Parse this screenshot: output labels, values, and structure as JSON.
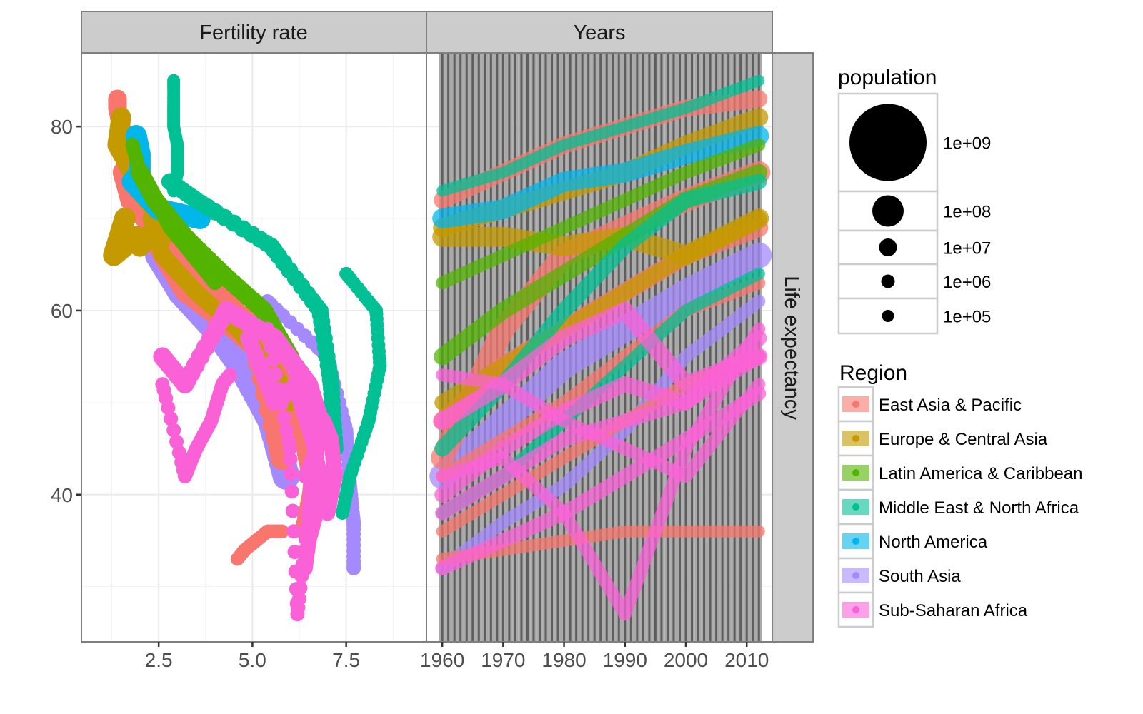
{
  "chart_data": {
    "type": "scatter",
    "title": "",
    "facets": {
      "columns": [
        "Fertility rate",
        "Years"
      ],
      "rows": [
        "Life expectancy"
      ]
    },
    "y_axis": {
      "label": "Life expectancy",
      "ticks": [
        40,
        60,
        80
      ],
      "tick_labels": [
        "40",
        "60",
        "80"
      ],
      "range": [
        24,
        88
      ]
    },
    "panels": [
      {
        "name": "Fertility rate",
        "x_ticks": [
          2.5,
          5.0,
          7.5
        ],
        "x_tick_labels": [
          "2.5",
          "5.0",
          "7.5"
        ],
        "x_range": [
          0.44,
          9.64
        ],
        "grid": true
      },
      {
        "name": "Years",
        "x_ticks": [
          1960,
          1970,
          1980,
          1990,
          2000,
          2010
        ],
        "x_tick_labels": [
          "1960",
          "1970",
          "1980",
          "1990",
          "2000",
          "2010"
        ],
        "x_range": [
          1957.4,
          2014.2
        ],
        "grid": true,
        "year_bars": {
          "from": 1960,
          "to": 2012
        }
      }
    ],
    "legend": {
      "size": {
        "title": "population",
        "breaks": [
          "1e+09",
          "1e+08",
          "1e+07",
          "1e+06",
          "1e+05"
        ]
      },
      "color": {
        "title": "Region",
        "entries": [
          {
            "label": "East Asia & Pacific",
            "color": "#F8766D"
          },
          {
            "label": "Europe & Central Asia",
            "color": "#C49A00"
          },
          {
            "label": "Latin America & Caribbean",
            "color": "#53B400"
          },
          {
            "label": "Middle East & North Africa",
            "color": "#00C094"
          },
          {
            "label": "North America",
            "color": "#00B6EB"
          },
          {
            "label": "South Asia",
            "color": "#A58AFF"
          },
          {
            "label": "Sub-Saharan Africa",
            "color": "#FB61D7"
          }
        ]
      }
    },
    "series": [
      {
        "name": "East Asia & Pacific",
        "trajectories": [
          {
            "fertility": [
              2.0,
              1.8,
              1.6,
              1.5,
              1.4,
              1.4
            ],
            "life": [
              72,
              75,
              78,
              80,
              82,
              83
            ],
            "years": [
              1960,
              1970,
              1980,
              1990,
              2000,
              2012
            ],
            "size": 18
          },
          {
            "fertility": [
              5.8,
              5.0,
              3.0,
              2.4,
              1.8,
              1.6
            ],
            "life": [
              44,
              58,
              66,
              69,
              72,
              75
            ],
            "years": [
              1960,
              1970,
              1980,
              1990,
              2000,
              2012
            ],
            "size": 26
          },
          {
            "fertility": [
              6.2,
              5.6,
              4.5,
              3.2,
              2.6,
              2.3
            ],
            "life": [
              48,
              54,
              58,
              62,
              66,
              69
            ],
            "years": [
              1960,
              1970,
              1980,
              1990,
              2000,
              2012
            ],
            "size": 20
          },
          {
            "fertility": [
              6.5,
              6.3,
              6.0,
              5.2,
              4.5,
              3.8
            ],
            "life": [
              42,
              46,
              50,
              55,
              60,
              63
            ],
            "years": [
              1960,
              1970,
              1980,
              1990,
              2000,
              2012
            ],
            "size": 12
          },
          {
            "fertility": [
              4.6,
              4.8,
              5.1,
              5.4,
              5.6,
              5.8
            ],
            "life": [
              33,
              34,
              35,
              36,
              36,
              36
            ],
            "years": [
              1960,
              1970,
              1980,
              1990,
              2000,
              2012
            ],
            "size": 11
          },
          {
            "fertility": [
              6.3,
              6.5,
              6.6,
              6.8,
              6.5,
              6.0
            ],
            "life": [
              36,
              40,
              44,
              48,
              52,
              55
            ],
            "years": [
              1960,
              1970,
              1980,
              1990,
              2000,
              2012
            ],
            "size": 11
          }
        ]
      },
      {
        "name": "Europe & Central Asia",
        "trajectories": [
          {
            "fertility": [
              2.8,
              2.4,
              2.0,
              1.8,
              1.4,
              1.5
            ],
            "life": [
              69,
              71,
              73,
              75,
              78,
              81
            ],
            "years": [
              1960,
              1970,
              1980,
              1990,
              2000,
              2012
            ],
            "size": 20
          },
          {
            "fertility": [
              2.6,
              2.2,
              2.0,
              1.9,
              1.3,
              1.6
            ],
            "life": [
              68,
              68,
              67,
              68,
              66,
              70
            ],
            "years": [
              1960,
              1970,
              1980,
              1990,
              2000,
              2012
            ],
            "size": 22
          },
          {
            "fertility": [
              6.0,
              5.5,
              4.6,
              3.5,
              2.6,
              2.3
            ],
            "life": [
              50,
              54,
              58,
              62,
              66,
              70
            ],
            "years": [
              1960,
              1970,
              1980,
              1990,
              2000,
              2012
            ],
            "size": 16
          }
        ]
      },
      {
        "name": "Latin America & Caribbean",
        "trajectories": [
          {
            "fertility": [
              6.0,
              5.3,
              4.2,
              3.2,
              2.4,
              2.0
            ],
            "life": [
              55,
              60,
              64,
              68,
              72,
              75
            ],
            "years": [
              1960,
              1970,
              1980,
              1990,
              2000,
              2012
            ],
            "size": 18
          },
          {
            "fertility": [
              4.0,
              3.4,
              2.8,
              2.4,
              2.0,
              1.8
            ],
            "life": [
              63,
              66,
              69,
              72,
              75,
              78
            ],
            "years": [
              1960,
              1970,
              1980,
              1990,
              2000,
              2012
            ],
            "size": 12
          }
        ]
      },
      {
        "name": "Middle East & North Africa",
        "trajectories": [
          {
            "fertility": [
              7.4,
              7.6,
              8.1,
              8.4,
              8.3,
              7.5
            ],
            "life": [
              38,
              42,
              48,
              54,
              60,
              64
            ],
            "years": [
              1960,
              1970,
              1980,
              1990,
              2000,
              2012
            ],
            "size": 11
          },
          {
            "fertility": [
              7.2,
              7.1,
              6.8,
              5.5,
              3.5,
              2.8
            ],
            "life": [
              45,
              52,
              60,
              67,
              72,
              74
            ],
            "years": [
              1960,
              1970,
              1980,
              1990,
              2000,
              2012
            ],
            "size": 16
          },
          {
            "fertility": [
              2.9,
              3.0,
              3.0,
              2.9,
              2.9,
              2.9
            ],
            "life": [
              73,
              75,
              78,
              80,
              82,
              85
            ],
            "years": [
              1960,
              1970,
              1980,
              1990,
              2000,
              2012
            ],
            "size": 10
          }
        ]
      },
      {
        "name": "North America",
        "trajectories": [
          {
            "fertility": [
              3.6,
              2.5,
              1.8,
              2.0,
              2.0,
              1.9
            ],
            "life": [
              70,
              71,
              74,
              75,
              77,
              79
            ],
            "years": [
              1960,
              1970,
              1980,
              1990,
              2000,
              2012
            ],
            "size": 22
          }
        ]
      },
      {
        "name": "South Asia",
        "trajectories": [
          {
            "fertility": [
              7.7,
              7.7,
              7.6,
              7.5,
              7.0,
              5.4
            ],
            "life": [
              32,
              37,
              41,
              47,
              55,
              61
            ],
            "years": [
              1960,
              1970,
              1980,
              1990,
              2000,
              2012
            ],
            "size": 12
          },
          {
            "fertility": [
              5.9,
              5.5,
              4.7,
              4.0,
              3.1,
              2.5
            ],
            "life": [
              42,
              48,
              54,
              58,
              62,
              66
            ],
            "years": [
              1960,
              1970,
              1980,
              1990,
              2000,
              2012
            ],
            "size": 30
          }
        ]
      },
      {
        "name": "Sub-Saharan Africa",
        "trajectories": [
          {
            "fertility": [
              6.6,
              6.7,
              6.6,
              6.2,
              5.6,
              4.9
            ],
            "life": [
              40,
              45,
              49,
              52,
              50,
              57
            ],
            "years": [
              1960,
              1970,
              1980,
              1990,
              2000,
              2012
            ],
            "size": 16
          },
          {
            "fertility": [
              6.4,
              6.5,
              6.7,
              6.8,
              6.6,
              6.2
            ],
            "life": [
              32,
              35,
              38,
              42,
              46,
              51
            ],
            "years": [
              1960,
              1970,
              1980,
              1990,
              2000,
              2012
            ],
            "size": 14
          },
          {
            "fertility": [
              6.8,
              6.5,
              5.6,
              4.3,
              3.2,
              2.6
            ],
            "life": [
              48,
              52,
              57,
              60,
              52,
              55
            ],
            "years": [
              1960,
              1970,
              1980,
              1990,
              2000,
              2012
            ],
            "size": 18
          },
          {
            "fertility": [
              6.4,
              6.6,
              6.5,
              6.2,
              6.0,
              5.4
            ],
            "life": [
              42,
              44,
              38,
              27,
              45,
              58
            ],
            "years": [
              1960,
              1970,
              1980,
              1990,
              2000,
              2012
            ],
            "size": 12
          },
          {
            "fertility": [
              7.0,
              7.2,
              7.1,
              6.9,
              6.5,
              6.0
            ],
            "life": [
              38,
              42,
              46,
              48,
              50,
              55
            ],
            "years": [
              1960,
              1970,
              1980,
              1990,
              2000,
              2012
            ],
            "size": 14
          },
          {
            "fertility": [
              4.4,
              4.2,
              3.9,
              3.5,
              3.2,
              2.6
            ],
            "life": [
              53,
              52,
              48,
              45,
              42,
              52
            ],
            "years": [
              1960,
              1970,
              1980,
              1990,
              2000,
              2012
            ],
            "size": 12
          }
        ]
      }
    ]
  }
}
